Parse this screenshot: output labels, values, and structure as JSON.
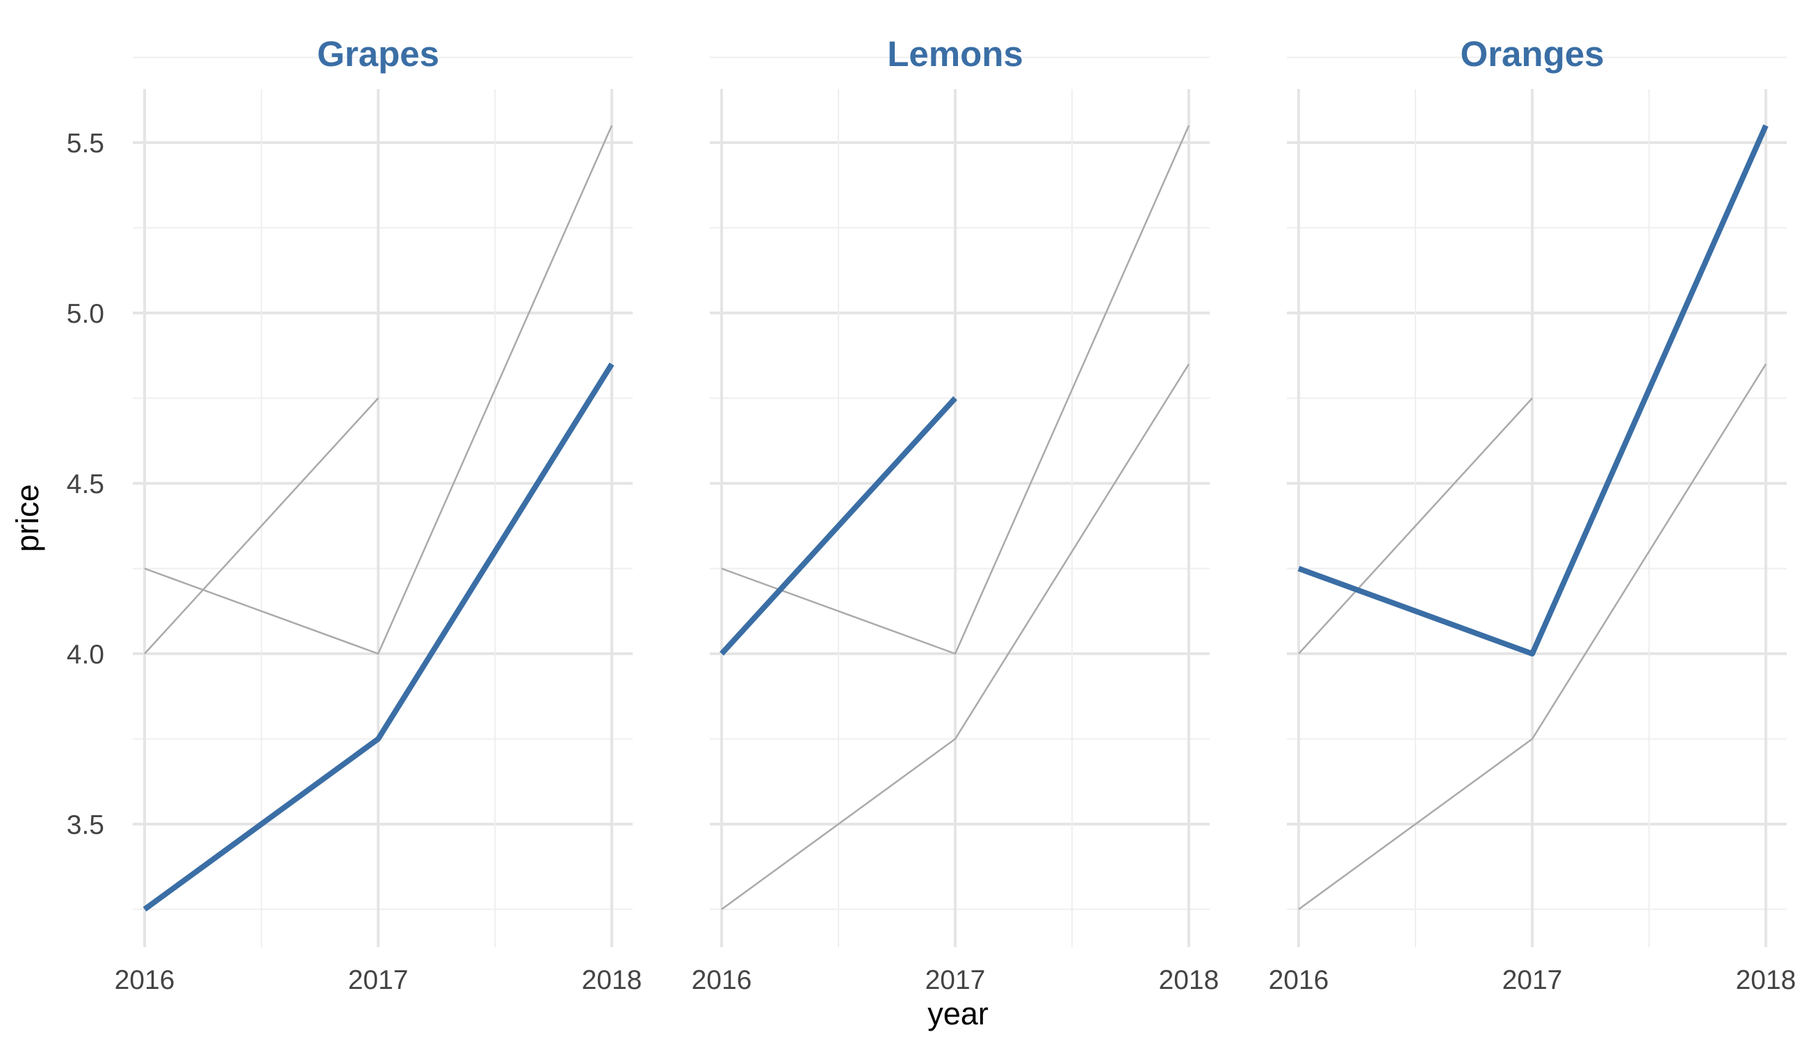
{
  "chart_data": {
    "type": "line",
    "xlabel": "year",
    "ylabel": "price",
    "x": [
      2016,
      2017,
      2018
    ],
    "x_ticks": [
      "2016",
      "2017",
      "2018"
    ],
    "y_ticks": [
      "3.5",
      "4.0",
      "4.5",
      "5.0",
      "5.5"
    ],
    "ylim": [
      3.17,
      5.67
    ],
    "xlim": [
      2016,
      2018
    ],
    "grid": true,
    "legend": "none",
    "colors": {
      "highlight": "#3a6ea5",
      "context": "#aaaaaa",
      "grid_major": "#e5e5e5",
      "grid_minor": "#efefef"
    },
    "series": [
      {
        "name": "Grapes",
        "values": [
          3.25,
          3.75,
          4.85
        ]
      },
      {
        "name": "Lemons",
        "values": [
          4.0,
          4.75,
          null
        ]
      },
      {
        "name": "Oranges",
        "values": [
          4.25,
          4.0,
          5.55
        ]
      },
      {
        "values": [
          4.0,
          4.75,
          null
        ]
      },
      {
        "values": [
          4.25,
          4.0,
          5.55
        ]
      },
      {
        "values": [
          3.25,
          3.75,
          4.85
        ]
      }
    ],
    "panels": [
      {
        "title": "Grapes",
        "highlight_index": 0,
        "context_indices": [
          3,
          4
        ]
      },
      {
        "title": "Lemons",
        "highlight_index": 1,
        "context_indices": [
          4,
          5
        ]
      },
      {
        "title": "Oranges",
        "highlight_index": 2,
        "context_indices": [
          3,
          5
        ]
      }
    ]
  }
}
